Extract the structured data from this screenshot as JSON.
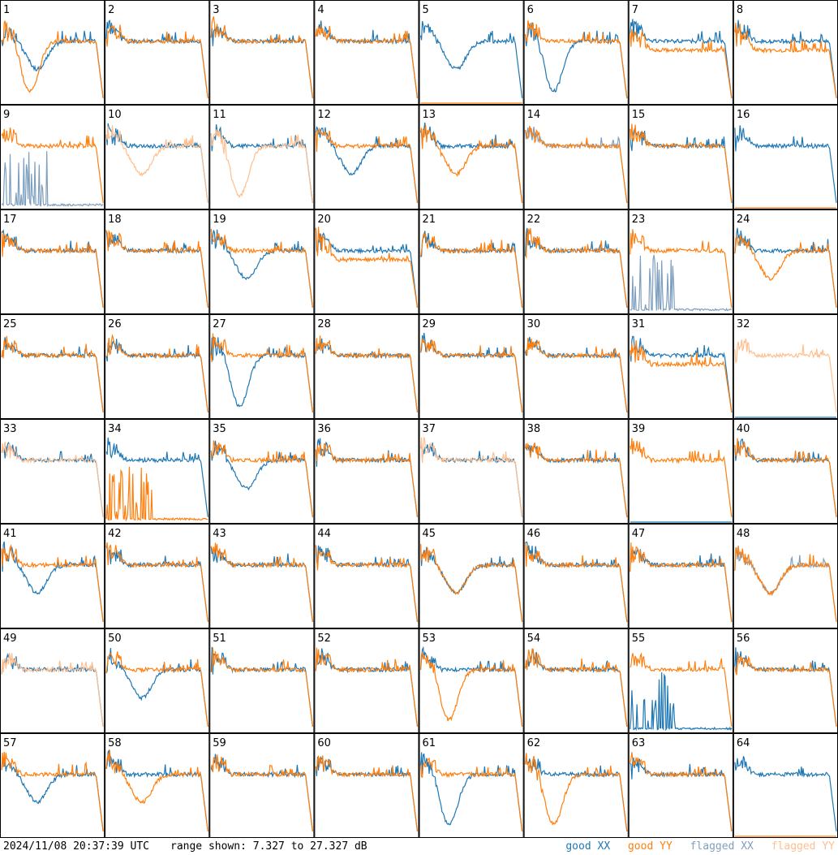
{
  "footer": {
    "timestamp": "2024/11/08 20:37:39 UTC",
    "range_label": "range shown: 7.327 to 27.327 dB"
  },
  "legend": [
    {
      "key": "good_xx",
      "label": "good XX",
      "color": "#1f77b4"
    },
    {
      "key": "good_yy",
      "label": "good YY",
      "color": "#ff7f0e"
    },
    {
      "key": "flagged_xx",
      "label": "flagged XX",
      "color": "#7f9fbf"
    },
    {
      "key": "flagged_yy",
      "label": "flagged YY",
      "color": "#ffbf8f"
    }
  ],
  "chart_data": {
    "type": "line",
    "layout": "8x8 small multiples",
    "ylim_db": [
      7.327,
      27.327
    ],
    "grid": false,
    "legend_placement": "bottom-right",
    "panels": [
      {
        "id": "1",
        "xx": "good",
        "yy": "good",
        "profile_xx": "dip",
        "profile_yy": "deepdip"
      },
      {
        "id": "2",
        "xx": "good",
        "yy": "good",
        "profile_xx": "normal",
        "profile_yy": "normal"
      },
      {
        "id": "3",
        "xx": "good",
        "yy": "good",
        "profile_xx": "normal",
        "profile_yy": "normal"
      },
      {
        "id": "4",
        "xx": "good",
        "yy": "good",
        "profile_xx": "normal",
        "profile_yy": "normal"
      },
      {
        "id": "5",
        "xx": "good",
        "yy": "good",
        "profile_xx": "dip",
        "profile_yy": "dead"
      },
      {
        "id": "6",
        "xx": "good",
        "yy": "good",
        "profile_xx": "deepdip",
        "profile_yy": "normal"
      },
      {
        "id": "7",
        "xx": "good",
        "yy": "good",
        "profile_xx": "normal",
        "profile_yy": "low"
      },
      {
        "id": "8",
        "xx": "good",
        "yy": "good",
        "profile_xx": "normal",
        "profile_yy": "low"
      },
      {
        "id": "9",
        "xx": "flagged",
        "yy": "good",
        "profile_xx": "spiky_dead",
        "profile_yy": "normal"
      },
      {
        "id": "10",
        "xx": "good",
        "yy": "flagged",
        "profile_xx": "normal",
        "profile_yy": "dip"
      },
      {
        "id": "11",
        "xx": "good",
        "yy": "flagged",
        "profile_xx": "normal",
        "profile_yy": "deepdip"
      },
      {
        "id": "12",
        "xx": "good",
        "yy": "good",
        "profile_xx": "dip",
        "profile_yy": "normal"
      },
      {
        "id": "13",
        "xx": "good",
        "yy": "good",
        "profile_xx": "normal",
        "profile_yy": "dip"
      },
      {
        "id": "14",
        "xx": "flagged",
        "yy": "good",
        "profile_xx": "normal",
        "profile_yy": "normal"
      },
      {
        "id": "15",
        "xx": "good",
        "yy": "good",
        "profile_xx": "normal",
        "profile_yy": "normal"
      },
      {
        "id": "16",
        "xx": "good",
        "yy": "good",
        "profile_xx": "normal",
        "profile_yy": "dead"
      },
      {
        "id": "17",
        "xx": "good",
        "yy": "good",
        "profile_xx": "normal",
        "profile_yy": "normal"
      },
      {
        "id": "18",
        "xx": "good",
        "yy": "good",
        "profile_xx": "normal",
        "profile_yy": "normal"
      },
      {
        "id": "19",
        "xx": "good",
        "yy": "good",
        "profile_xx": "dip",
        "profile_yy": "normal"
      },
      {
        "id": "20",
        "xx": "good",
        "yy": "good",
        "profile_xx": "normal",
        "profile_yy": "low"
      },
      {
        "id": "21",
        "xx": "good",
        "yy": "good",
        "profile_xx": "normal",
        "profile_yy": "normal"
      },
      {
        "id": "22",
        "xx": "good",
        "yy": "good",
        "profile_xx": "normal",
        "profile_yy": "normal"
      },
      {
        "id": "23",
        "xx": "flagged",
        "yy": "good",
        "profile_xx": "spiky_dead",
        "profile_yy": "normal"
      },
      {
        "id": "24",
        "xx": "good",
        "yy": "good",
        "profile_xx": "normal",
        "profile_yy": "dip"
      },
      {
        "id": "25",
        "xx": "good",
        "yy": "good",
        "profile_xx": "normal",
        "profile_yy": "normal"
      },
      {
        "id": "26",
        "xx": "good",
        "yy": "good",
        "profile_xx": "normal",
        "profile_yy": "normal"
      },
      {
        "id": "27",
        "xx": "good",
        "yy": "good",
        "profile_xx": "deepdip",
        "profile_yy": "normal"
      },
      {
        "id": "28",
        "xx": "good",
        "yy": "good",
        "profile_xx": "normal",
        "profile_yy": "normal"
      },
      {
        "id": "29",
        "xx": "good",
        "yy": "good",
        "profile_xx": "normal",
        "profile_yy": "normal"
      },
      {
        "id": "30",
        "xx": "good",
        "yy": "good",
        "profile_xx": "normal",
        "profile_yy": "normal"
      },
      {
        "id": "31",
        "xx": "good",
        "yy": "good",
        "profile_xx": "normal",
        "profile_yy": "low"
      },
      {
        "id": "32",
        "xx": "good",
        "yy": "flagged",
        "profile_xx": "dead",
        "profile_yy": "normal"
      },
      {
        "id": "33",
        "xx": "good",
        "yy": "flagged",
        "profile_xx": "normal",
        "profile_yy": "normal"
      },
      {
        "id": "34",
        "xx": "good",
        "yy": "good",
        "profile_xx": "normal",
        "profile_yy": "spiky_dead"
      },
      {
        "id": "35",
        "xx": "good",
        "yy": "good",
        "profile_xx": "dip",
        "profile_yy": "normal"
      },
      {
        "id": "36",
        "xx": "good",
        "yy": "good",
        "profile_xx": "normal",
        "profile_yy": "normal"
      },
      {
        "id": "37",
        "xx": "good",
        "yy": "flagged",
        "profile_xx": "normal",
        "profile_yy": "normal"
      },
      {
        "id": "38",
        "xx": "good",
        "yy": "good",
        "profile_xx": "normal",
        "profile_yy": "normal"
      },
      {
        "id": "39",
        "xx": "good",
        "yy": "good",
        "profile_xx": "dead",
        "profile_yy": "normal"
      },
      {
        "id": "40",
        "xx": "good",
        "yy": "good",
        "profile_xx": "normal",
        "profile_yy": "normal"
      },
      {
        "id": "41",
        "xx": "good",
        "yy": "good",
        "profile_xx": "dip",
        "profile_yy": "normal"
      },
      {
        "id": "42",
        "xx": "good",
        "yy": "good",
        "profile_xx": "normal",
        "profile_yy": "normal"
      },
      {
        "id": "43",
        "xx": "good",
        "yy": "good",
        "profile_xx": "normal",
        "profile_yy": "normal"
      },
      {
        "id": "44",
        "xx": "good",
        "yy": "good",
        "profile_xx": "normal",
        "profile_yy": "normal"
      },
      {
        "id": "45",
        "xx": "good",
        "yy": "good",
        "profile_xx": "dip",
        "profile_yy": "dip"
      },
      {
        "id": "46",
        "xx": "good",
        "yy": "good",
        "profile_xx": "normal",
        "profile_yy": "normal"
      },
      {
        "id": "47",
        "xx": "good",
        "yy": "good",
        "profile_xx": "normal",
        "profile_yy": "normal"
      },
      {
        "id": "48",
        "xx": "flagged",
        "yy": "good",
        "profile_xx": "dip",
        "profile_yy": "dip"
      },
      {
        "id": "49",
        "xx": "good",
        "yy": "flagged",
        "profile_xx": "normal",
        "profile_yy": "normal"
      },
      {
        "id": "50",
        "xx": "good",
        "yy": "good",
        "profile_xx": "dip",
        "profile_yy": "normal"
      },
      {
        "id": "51",
        "xx": "good",
        "yy": "good",
        "profile_xx": "normal",
        "profile_yy": "normal"
      },
      {
        "id": "52",
        "xx": "good",
        "yy": "good",
        "profile_xx": "normal",
        "profile_yy": "normal"
      },
      {
        "id": "53",
        "xx": "good",
        "yy": "good",
        "profile_xx": "normal",
        "profile_yy": "deepdip"
      },
      {
        "id": "54",
        "xx": "good",
        "yy": "good",
        "profile_xx": "normal",
        "profile_yy": "normal"
      },
      {
        "id": "55",
        "xx": "good",
        "yy": "good",
        "profile_xx": "spiky_dead",
        "profile_yy": "normal"
      },
      {
        "id": "56",
        "xx": "good",
        "yy": "good",
        "profile_xx": "normal",
        "profile_yy": "normal"
      },
      {
        "id": "57",
        "xx": "good",
        "yy": "good",
        "profile_xx": "dip",
        "profile_yy": "normal"
      },
      {
        "id": "58",
        "xx": "good",
        "yy": "good",
        "profile_xx": "normal",
        "profile_yy": "dip"
      },
      {
        "id": "59",
        "xx": "good",
        "yy": "good",
        "profile_xx": "normal",
        "profile_yy": "normal"
      },
      {
        "id": "60",
        "xx": "good",
        "yy": "good",
        "profile_xx": "normal",
        "profile_yy": "normal"
      },
      {
        "id": "61",
        "xx": "good",
        "yy": "good",
        "profile_xx": "deepdip",
        "profile_yy": "normal"
      },
      {
        "id": "62",
        "xx": "good",
        "yy": "good",
        "profile_xx": "normal",
        "profile_yy": "deepdip"
      },
      {
        "id": "63",
        "xx": "good",
        "yy": "good",
        "profile_xx": "normal",
        "profile_yy": "normal"
      },
      {
        "id": "64",
        "xx": "good",
        "yy": "good",
        "profile_xx": "normal",
        "profile_yy": "dead"
      }
    ]
  }
}
